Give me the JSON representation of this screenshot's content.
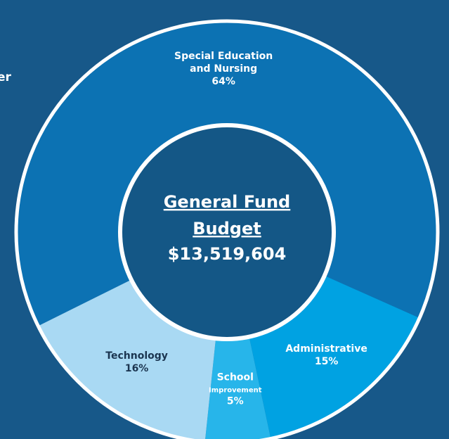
{
  "chart_data": {
    "type": "donut",
    "side_text": "er",
    "center_title": [
      "General Fund",
      "Budget"
    ],
    "center_value": "$13,519,604",
    "categories": [
      [
        "Special Education",
        "and Nursing"
      ],
      [
        "Administrative"
      ],
      [
        "School",
        "Improvement"
      ],
      [
        "Technology"
      ]
    ],
    "values": [
      64,
      15,
      5,
      16
    ],
    "value_labels": [
      "64%",
      "15%",
      "5%",
      "16%"
    ],
    "colors": [
      "#0c72b3",
      "#00a2e2",
      "#27b5ea",
      "#a9d9f3"
    ]
  }
}
